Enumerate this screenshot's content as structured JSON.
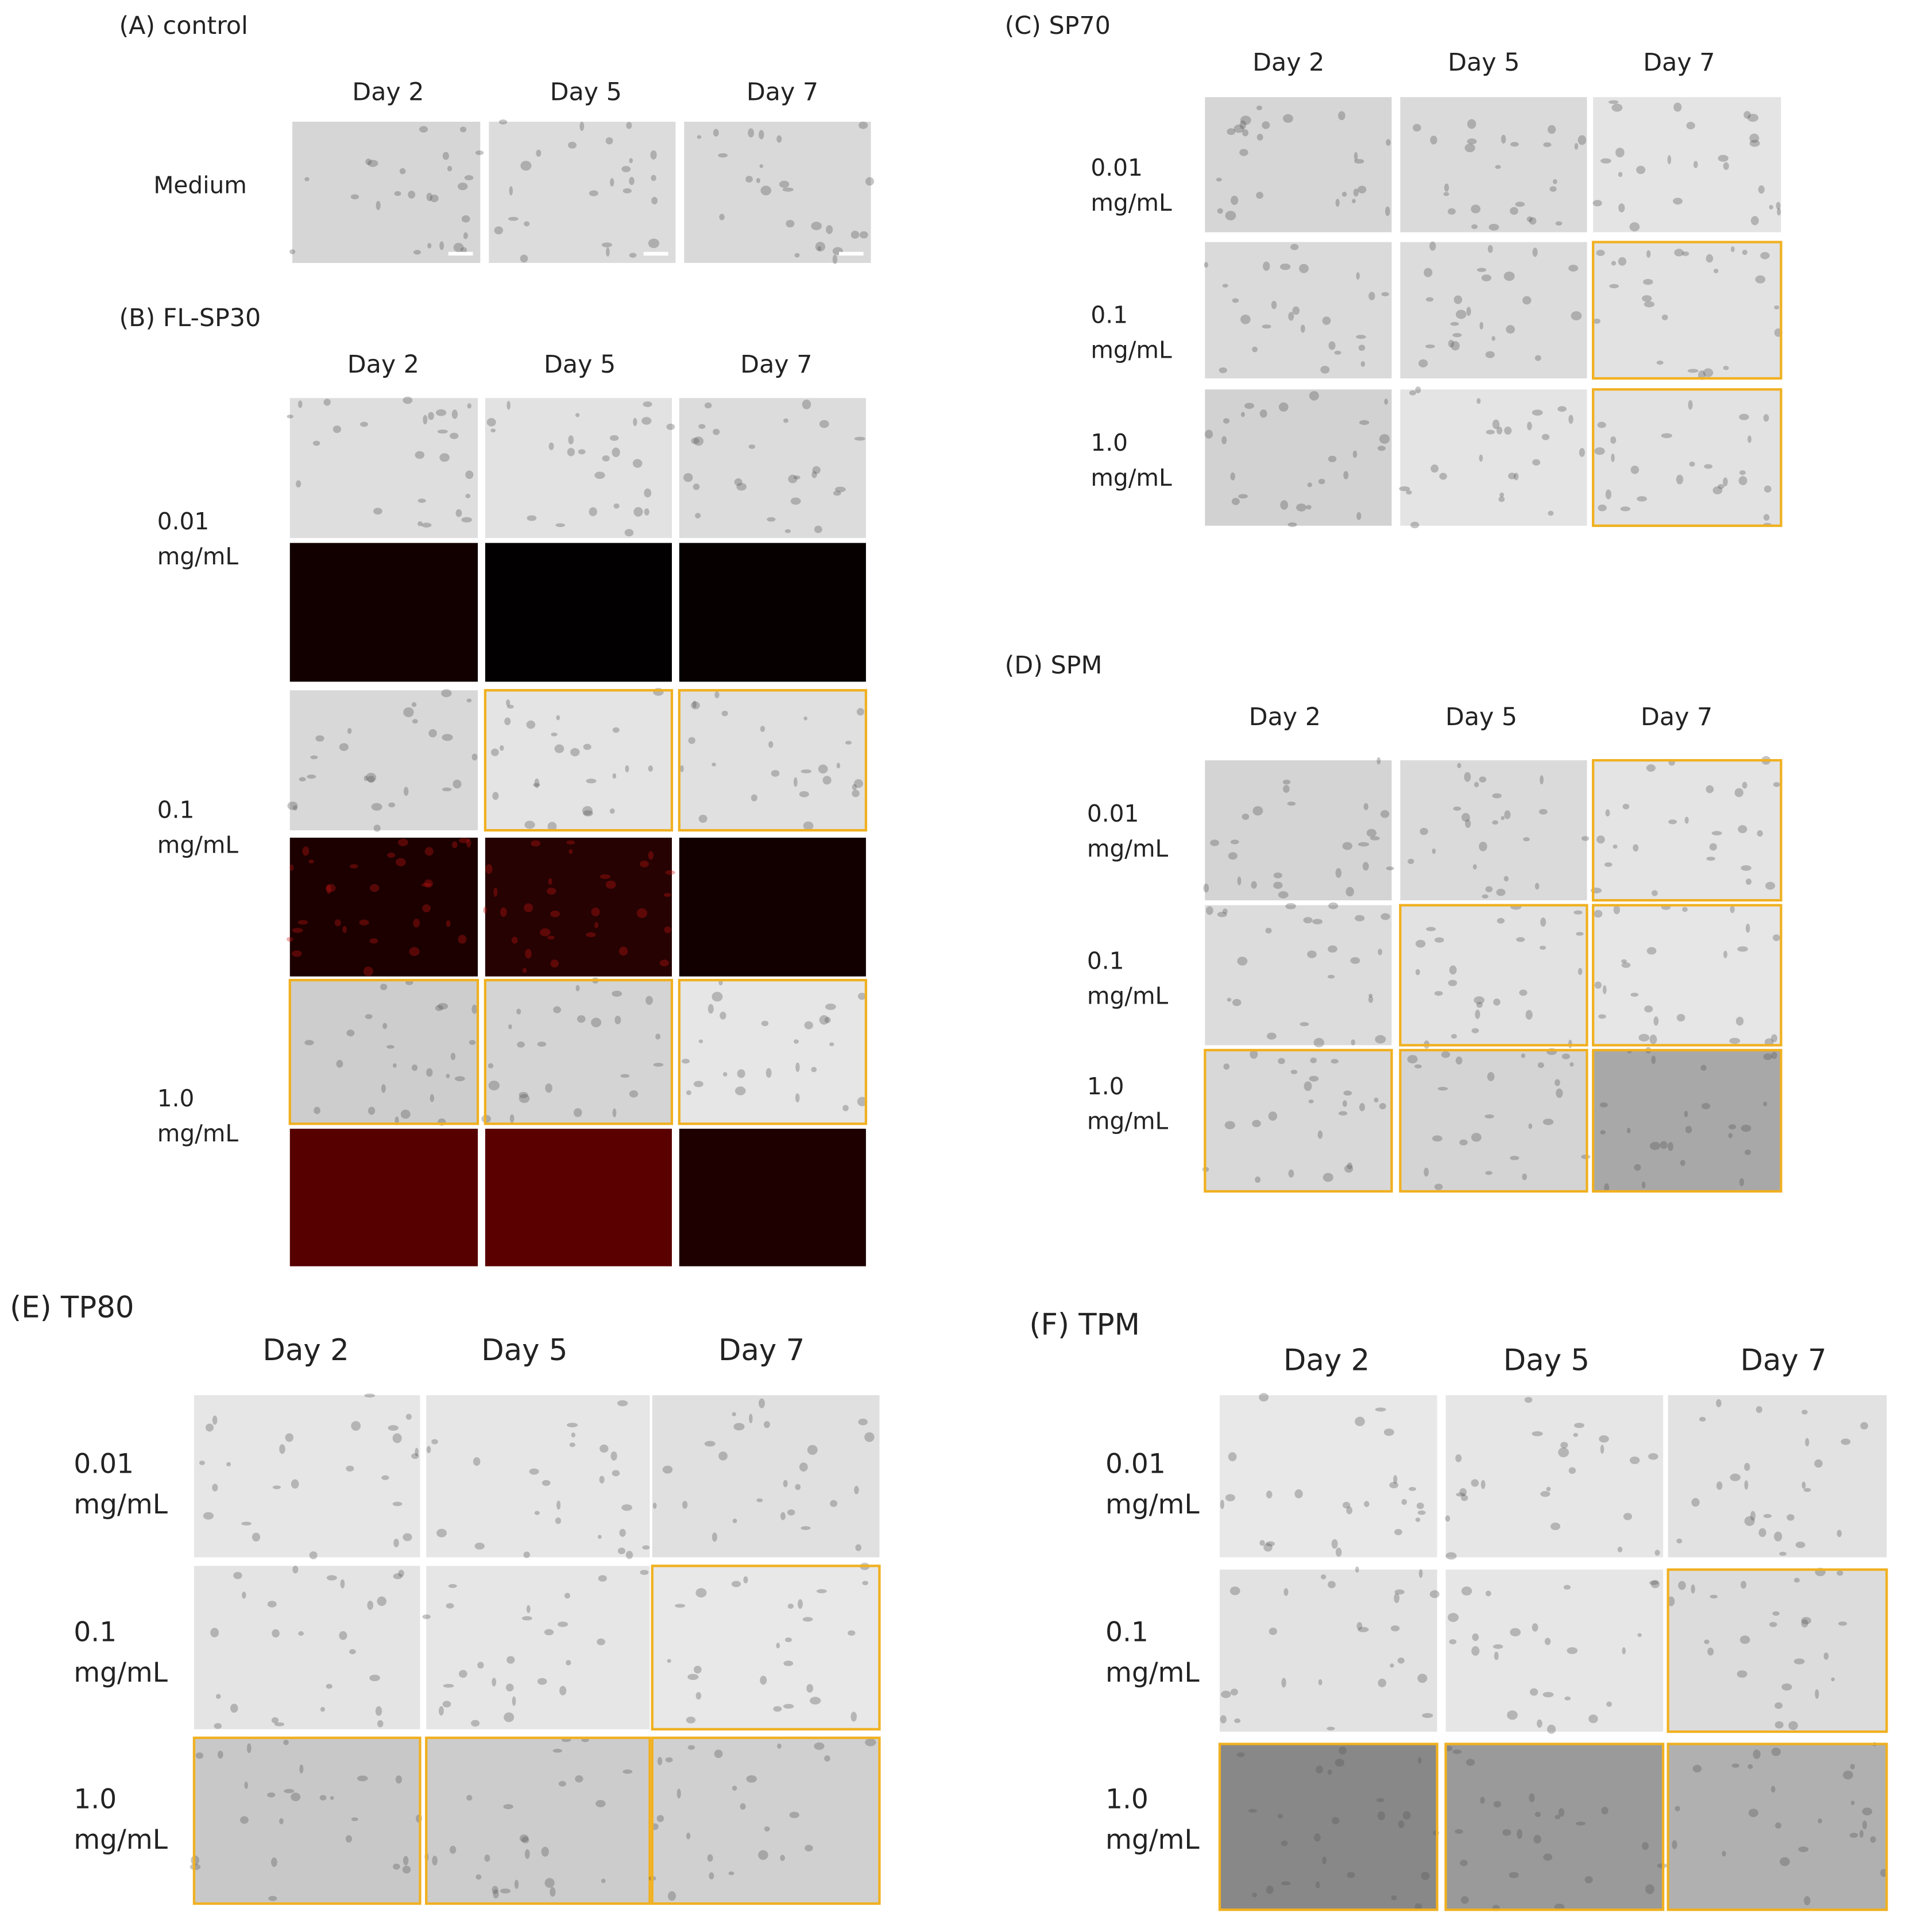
{
  "panels": [
    {
      "title": "(A) control",
      "days": [
        "Day 2",
        "Day 5",
        "Day 7"
      ],
      "rows": [
        {
          "label": [
            "Medium"
          ],
          "colors": [
            "#d6d6d6",
            "#dcdcdc",
            "#d9d9d9"
          ],
          "highlighted": []
        }
      ]
    },
    {
      "title": "(B) FL-SP30",
      "days": [
        "Day 2",
        "Day 5",
        "Day 7"
      ],
      "rows": [
        {
          "label": [
            "0.01",
            "mg/mL"
          ],
          "colors": [
            "#dedede",
            "#e2e2e2",
            "#dcdcdc"
          ],
          "fluorescence": [
            "#120000",
            "#020000",
            "#060000"
          ],
          "highlighted": []
        },
        {
          "label": [
            "0.1",
            "mg/mL"
          ],
          "colors": [
            "#d8d8d8",
            "#e4e4e4",
            "#e0e0e0"
          ],
          "fluorescence": [
            "#1c0000",
            "#260202",
            "#120000"
          ],
          "highlighted": [
            1,
            2
          ]
        },
        {
          "label": [
            "1.0",
            "mg/mL"
          ],
          "colors": [
            "#cdcdcd",
            "#d4d4d4",
            "#e6e6e6"
          ],
          "fluorescence": [
            "#560000",
            "#5a0000",
            "#1e0000"
          ],
          "highlighted": [
            0,
            1,
            2
          ]
        }
      ]
    },
    {
      "title": "(C) SP70",
      "days": [
        "Day 2",
        "Day 5",
        "Day 7"
      ],
      "rows": [
        {
          "label": [
            "0.01",
            "mg/mL"
          ],
          "colors": [
            "#d6d6d6",
            "#dadada",
            "#e4e4e4"
          ],
          "highlighted": []
        },
        {
          "label": [
            "0.1",
            "mg/mL"
          ],
          "colors": [
            "#dadada",
            "#dcdcdc",
            "#e2e2e2"
          ],
          "highlighted": [
            2
          ]
        },
        {
          "label": [
            "1.0",
            "mg/mL"
          ],
          "colors": [
            "#d2d2d2",
            "#e4e4e4",
            "#e2e2e2"
          ],
          "highlighted": [
            2
          ]
        }
      ]
    },
    {
      "title": "(D) SPM",
      "days": [
        "Day 2",
        "Day 5",
        "Day 7"
      ],
      "rows": [
        {
          "label": [
            "0.01",
            "mg/mL"
          ],
          "colors": [
            "#d4d4d4",
            "#dadada",
            "#e4e4e4"
          ],
          "highlighted": [
            2
          ]
        },
        {
          "label": [
            "0.1",
            "mg/mL"
          ],
          "colors": [
            "#dcdcdc",
            "#e2e2e2",
            "#e6e6e6"
          ],
          "highlighted": [
            1,
            2
          ]
        },
        {
          "label": [
            "1.0",
            "mg/mL"
          ],
          "colors": [
            "#d8d8d8",
            "#d4d4d4",
            "#a8a8a8"
          ],
          "highlighted": [
            0,
            1,
            2
          ]
        }
      ]
    },
    {
      "title": "(E) TP80",
      "days": [
        "Day 2",
        "Day 5",
        "Day 7"
      ],
      "rows": [
        {
          "label": [
            "0.01",
            "mg/mL"
          ],
          "colors": [
            "#e6e6e6",
            "#e6e6e6",
            "#e0e0e0"
          ],
          "highlighted": []
        },
        {
          "label": [
            "0.1",
            "mg/mL"
          ],
          "colors": [
            "#e4e4e4",
            "#e6e6e6",
            "#e8e8e8"
          ],
          "highlighted": [
            2
          ]
        },
        {
          "label": [
            "1.0",
            "mg/mL"
          ],
          "colors": [
            "#c8c8c8",
            "#cccccc",
            "#d0d0d0"
          ],
          "highlighted": [
            0,
            1,
            2
          ]
        }
      ]
    },
    {
      "title": "(F) TPM",
      "days": [
        "Day 2",
        "Day 5",
        "Day 7"
      ],
      "rows": [
        {
          "label": [
            "0.01",
            "mg/mL"
          ],
          "colors": [
            "#e8e8e8",
            "#e6e6e6",
            "#e2e2e2"
          ],
          "highlighted": []
        },
        {
          "label": [
            "0.1",
            "mg/mL"
          ],
          "colors": [
            "#e2e2e2",
            "#e6e6e6",
            "#dcdcdc"
          ],
          "highlighted": [
            2
          ]
        },
        {
          "label": [
            "1.0",
            "mg/mL"
          ],
          "colors": [
            "#888888",
            "#9a9a9a",
            "#b0b0b0"
          ],
          "highlighted": [
            0,
            1,
            2
          ]
        }
      ]
    }
  ]
}
